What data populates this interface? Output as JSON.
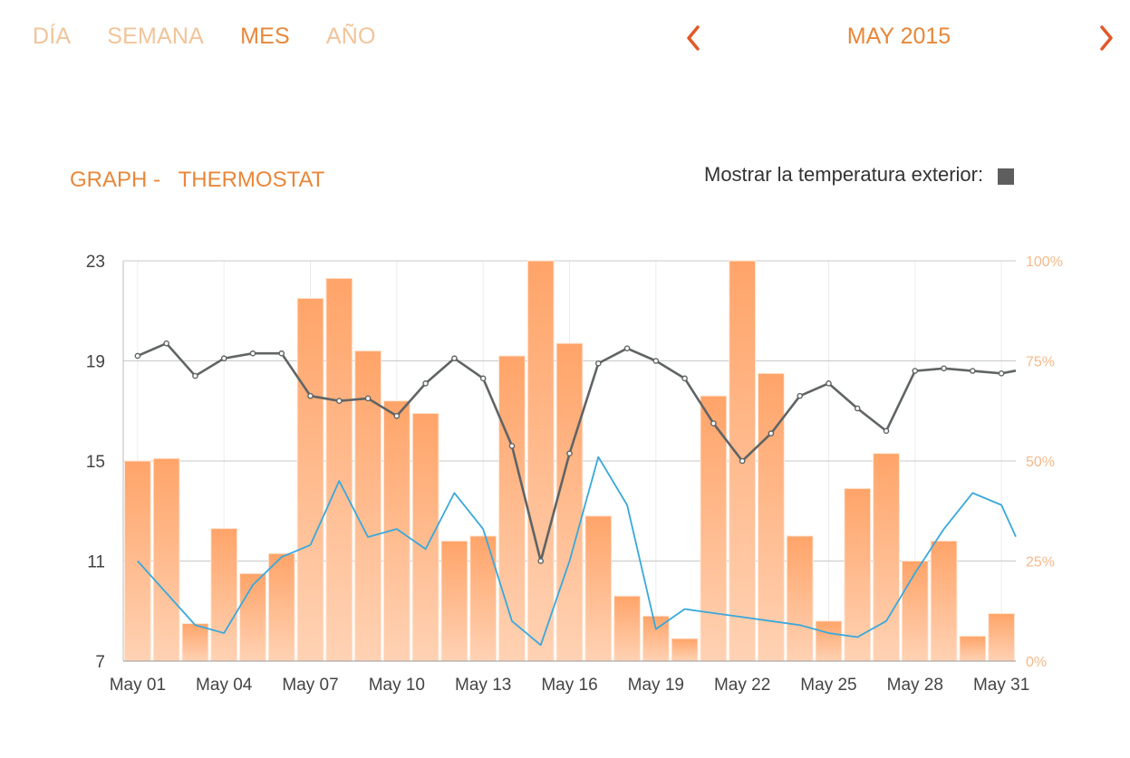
{
  "tabs": [
    {
      "label": "DÍA",
      "active": false
    },
    {
      "label": "SEMANA",
      "active": false
    },
    {
      "label": "MES",
      "active": true
    },
    {
      "label": "AÑO",
      "active": false
    }
  ],
  "period": {
    "label": "MAY 2015"
  },
  "icons": {
    "prev": "chevron-left-icon",
    "next": "chevron-right-icon"
  },
  "graph": {
    "title": "GRAPH -   THERMOSTAT"
  },
  "outside_temp": {
    "label": "Mostrar la temperatura exterior:",
    "checked": true
  },
  "colors": {
    "accent": "#e8873a",
    "tab_inactive": "#f2c49a",
    "arrow": "#e15a28",
    "bar_top": "#ffa469",
    "bar_bottom": "#ffd2b4",
    "temp_line": "#606464",
    "humidity_line": "#3aa8dc",
    "right_axis": "#f5b98a"
  },
  "chart_data": {
    "type": "bar",
    "x": [
      "May 01",
      "May 02",
      "May 03",
      "May 04",
      "May 05",
      "May 06",
      "May 07",
      "May 08",
      "May 09",
      "May 10",
      "May 11",
      "May 12",
      "May 13",
      "May 14",
      "May 15",
      "May 16",
      "May 17",
      "May 18",
      "May 19",
      "May 20",
      "May 21",
      "May 22",
      "May 23",
      "May 24",
      "May 25",
      "May 26",
      "May 27",
      "May 28",
      "May 29",
      "May 30",
      "May 31"
    ],
    "x_tick_labels": [
      "May 01",
      "May 04",
      "May 07",
      "May 10",
      "May 13",
      "May 16",
      "May 19",
      "May 22",
      "May 25",
      "May 28",
      "May 31"
    ],
    "series": [
      {
        "kind": "bar",
        "axis": "left",
        "values": [
          15.0,
          15.1,
          8.5,
          12.3,
          10.5,
          11.3,
          21.5,
          22.3,
          19.4,
          17.4,
          16.9,
          11.8,
          12.0,
          19.2,
          23.0,
          19.7,
          12.8,
          9.6,
          8.8,
          7.9,
          17.6,
          23.0,
          18.5,
          12.0,
          8.6,
          13.9,
          15.3,
          11.0,
          11.8,
          8.0,
          8.9
        ]
      },
      {
        "kind": "line",
        "axis": "left",
        "values": [
          19.2,
          19.7,
          18.4,
          19.1,
          19.3,
          19.3,
          17.6,
          17.4,
          17.5,
          16.8,
          18.1,
          19.1,
          18.3,
          15.6,
          11.0,
          15.3,
          18.9,
          19.5,
          19.0,
          18.3,
          16.5,
          15.0,
          16.1,
          17.6,
          18.1,
          17.1,
          16.2,
          18.6,
          18.7,
          18.6,
          18.5
        ]
      },
      {
        "kind": "line",
        "axis": "right",
        "values": [
          25,
          17,
          9,
          7,
          19,
          26,
          29,
          45,
          31,
          33,
          28,
          42,
          33,
          10,
          4,
          25,
          51,
          39,
          8,
          13,
          12,
          11,
          10,
          9,
          7,
          6,
          10,
          22,
          33,
          42,
          39
        ]
      }
    ],
    "y_left": {
      "ticks": [
        7,
        11,
        15,
        19,
        23
      ],
      "range": [
        7,
        23
      ]
    },
    "y_right": {
      "ticks": [
        "0%",
        "25%",
        "50%",
        "75%",
        "100%"
      ],
      "range": [
        0,
        100
      ]
    },
    "grid": true
  }
}
